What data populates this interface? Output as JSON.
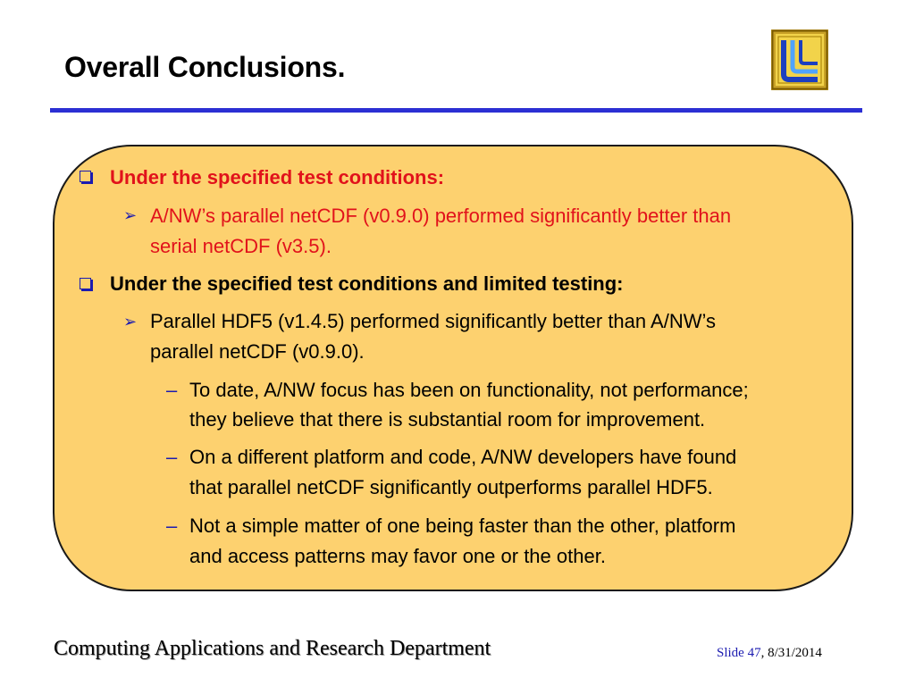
{
  "slide": {
    "title": "Overall Conclusions.",
    "bullets": {
      "b1": "Under the specified test conditions:",
      "b1_sub1_line1": "A/NW’s parallel netCDF (v0.9.0) performed significantly better than",
      "b1_sub1_line2": "serial netCDF (v3.5).",
      "b2": "Under the specified test conditions and limited testing:",
      "b2_sub1_line1": "Parallel HDF5 (v1.4.5) performed significantly better than A/NW’s",
      "b2_sub1_line2": "parallel netCDF (v0.9.0).",
      "b2_sub1_d1_line1": "To date, A/NW focus has been on functionality, not performance;",
      "b2_sub1_d1_line2": "they believe that there is substantial room for improvement.",
      "b2_sub1_d2_line1": "On a different platform and code, A/NW developers have found",
      "b2_sub1_d2_line2": "that parallel netCDF significantly outperforms parallel HDF5.",
      "b2_sub1_d3_line1": "Not a simple matter of one being faster than the other, platform",
      "b2_sub1_d3_line2": "and access patterns may favor one or the other."
    },
    "bullet_glyphs": {
      "arrow": "➢",
      "dash": "–"
    },
    "footer": {
      "department": "Computing Applications and Research Department",
      "slide_label": "Slide 47",
      "date_suffix": ", 8/31/2014"
    }
  },
  "colors": {
    "accent_blue": "#2b2fd3",
    "bullet_blue": "#1b1bb0",
    "highlight_red": "#e1121b",
    "box_fill": "#fdd16f"
  },
  "icons": {
    "logo": "llnl-logo-icon",
    "square_bullet": "square-bullet-icon",
    "arrow_bullet": "arrow-bullet-icon",
    "dash_bullet": "dash-bullet-icon"
  }
}
